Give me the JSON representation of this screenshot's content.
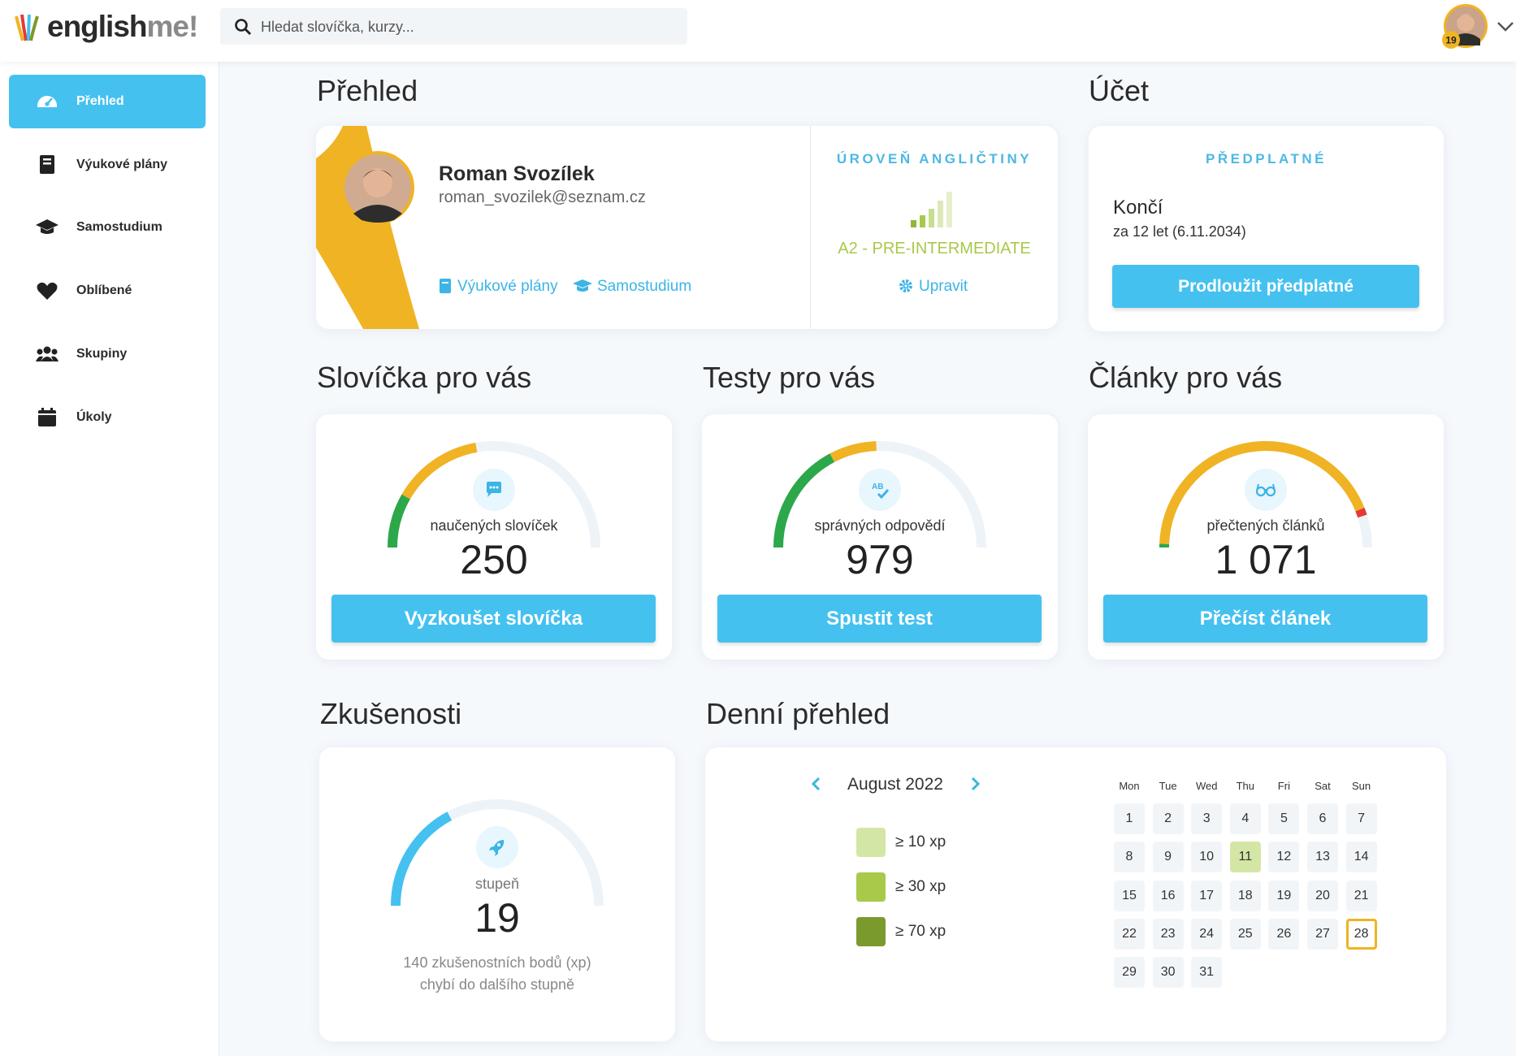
{
  "header": {
    "logo_main": "english",
    "logo_accent": "me!",
    "search_placeholder": "Hledat slovíčka, kurzy...",
    "avatar_badge": "19"
  },
  "sidebar": {
    "items": [
      "Přehled",
      "Výukové plány",
      "Samostudium",
      "Oblíbené",
      "Skupiny",
      "Úkoly"
    ],
    "active": 0
  },
  "overview": {
    "title": "Přehled",
    "name": "Roman Svozílek",
    "email": "roman_svozilek@seznam.cz",
    "links": [
      "Výukové plány",
      "Samostudium"
    ],
    "level_heading": "ÚROVEŇ ANGLIČTINY",
    "level": "A2 - PRE-INTERMEDIATE",
    "edit": "Upravit"
  },
  "account": {
    "title": "Účet",
    "heading": "PŘEDPLATNÉ",
    "status": "Končí",
    "expires": "za 12 let (6.11.2034)",
    "button": "Prodloužit předplatné"
  },
  "cards": [
    {
      "title": "Slovíčka pro vás",
      "label": "naučených slovíček",
      "value": "250",
      "button": "Vyzkoušet slovíčka"
    },
    {
      "title": "Testy pro vás",
      "label": "správných odpovědí",
      "value": "979",
      "button": "Spustit test"
    },
    {
      "title": "Články pro vás",
      "label": "přečtených článků",
      "value": "1 071",
      "button": "Přečíst článek"
    }
  ],
  "experience": {
    "title": "Zkušenosti",
    "label": "stupeň",
    "level": "19",
    "note": [
      "140 zkušenostních bodů (xp)",
      "chybí do dalšího stupně"
    ]
  },
  "daily": {
    "title": "Denní přehled",
    "month": "August 2022",
    "legend": [
      {
        "label": "≥ 10 xp",
        "color": "#d4e6a5"
      },
      {
        "label": "≥ 30 xp",
        "color": "#a8c94a"
      },
      {
        "label": "≥ 70 xp",
        "color": "#7b9a2e"
      }
    ],
    "weekdays": [
      "Mon",
      "Tue",
      "Wed",
      "Thu",
      "Fri",
      "Sat",
      "Sun"
    ],
    "days": [
      1,
      2,
      3,
      4,
      5,
      6,
      7,
      8,
      9,
      10,
      11,
      12,
      13,
      14,
      15,
      16,
      17,
      18,
      19,
      20,
      21,
      22,
      23,
      24,
      25,
      26,
      27,
      28,
      29,
      30,
      31
    ],
    "highlight_day": 11,
    "selected_day": 28
  }
}
